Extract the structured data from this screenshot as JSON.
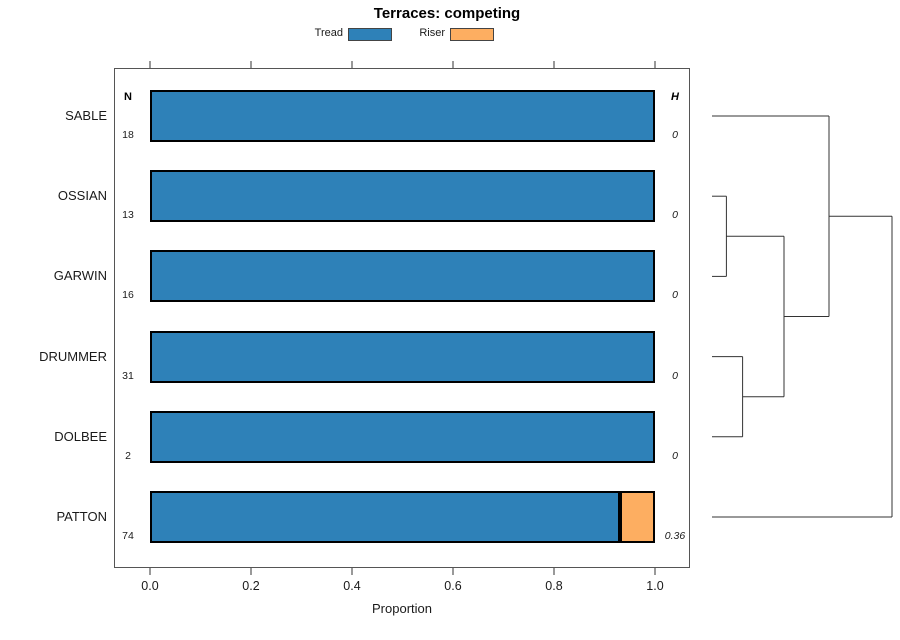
{
  "title": "Terraces: competing",
  "legend": {
    "items": [
      {
        "label": "Tread",
        "color": "#2E81B8"
      },
      {
        "label": "Riser",
        "color": "#FDAE61"
      }
    ]
  },
  "columns": {
    "n_header": "N",
    "h_header": "H"
  },
  "chart_data": {
    "type": "bar",
    "orientation": "horizontal",
    "stacked": true,
    "title": "Terraces: competing",
    "xlabel": "Proportion",
    "xlim": [
      0,
      1
    ],
    "grid": false,
    "legend_position": "top",
    "x_ticks": [
      "0.0",
      "0.2",
      "0.4",
      "0.6",
      "0.8",
      "1.0"
    ],
    "x_tick_values": [
      0,
      0.2,
      0.4,
      0.6,
      0.8,
      1.0
    ],
    "categories": [
      "SABLE",
      "OSSIAN",
      "GARWIN",
      "DRUMMER",
      "DOLBEE",
      "PATTON"
    ],
    "counts_n": [
      "18",
      "13",
      "16",
      "31",
      "2",
      "74"
    ],
    "entropy_h": [
      "0",
      "0",
      "0",
      "0",
      "0",
      "0.36"
    ],
    "series": [
      {
        "name": "Tread",
        "color": "#2E81B8",
        "values": [
          1.0,
          1.0,
          1.0,
          1.0,
          1.0,
          0.93
        ]
      },
      {
        "name": "Riser",
        "color": "#FDAE61",
        "values": [
          0,
          0,
          0,
          0,
          0,
          0.07
        ]
      }
    ],
    "dendrogram": {
      "leaves": [
        "SABLE",
        "OSSIAN",
        "GARWIN",
        "DRUMMER",
        "DOLBEE",
        "PATTON"
      ],
      "merges": [
        {
          "id": "m1",
          "children": [
            "OSSIAN",
            "GARWIN"
          ],
          "height": 0.08
        },
        {
          "id": "m2",
          "children": [
            "DRUMMER",
            "DOLBEE"
          ],
          "height": 0.17
        },
        {
          "id": "m3",
          "children": [
            "m1",
            "m2"
          ],
          "height": 0.4
        },
        {
          "id": "m4",
          "children": [
            "SABLE",
            "m3"
          ],
          "height": 0.65
        },
        {
          "id": "m5",
          "children": [
            "m4",
            "PATTON"
          ],
          "height": 1.0
        }
      ]
    }
  }
}
